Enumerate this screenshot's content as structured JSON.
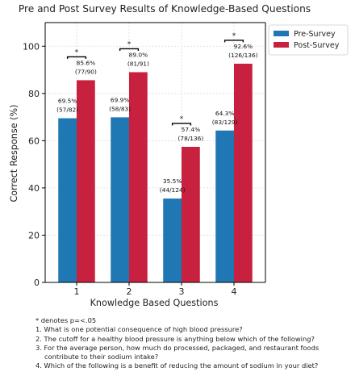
{
  "chart_data": {
    "type": "bar",
    "title": "Pre and Post Survey Results of Knowledge-Based Questions",
    "xlabel": "Knowledge Based Questions",
    "ylabel": "Correct Response (%)",
    "categories": [
      "1",
      "2",
      "3",
      "4"
    ],
    "ylim": [
      0,
      110
    ],
    "yticks": [
      "0",
      "20",
      "40",
      "60",
      "80",
      "100"
    ],
    "grid": true,
    "legend_position": "top-right",
    "series": [
      {
        "name": "Pre-Survey",
        "color": "#1f77b4",
        "values": [
          69.5,
          69.9,
          35.5,
          64.3
        ],
        "labels": [
          [
            "69.5%",
            "(57/82)"
          ],
          [
            "69.9%",
            "(58/83)"
          ],
          [
            "35.5%",
            "(44/124)"
          ],
          [
            "64.3%",
            "(83/129)"
          ]
        ]
      },
      {
        "name": "Post-Survey",
        "color": "#c8203f",
        "values": [
          85.6,
          89.0,
          57.4,
          92.6
        ],
        "labels": [
          [
            "85.6%",
            "(77/90)"
          ],
          [
            "89.0%",
            "(81/91)"
          ],
          [
            "57.4%",
            "(78/136)"
          ],
          [
            "92.6%",
            "(126/136)"
          ]
        ]
      }
    ],
    "significance": [
      "*",
      "*",
      "*",
      "*"
    ]
  },
  "notes": {
    "footnote": "* denotes p=<.05",
    "q1": "1. What is one potential consequence of high blood pressure?",
    "q2": "2. The cutoff for a healthy blood pressure is anything below which of the following?",
    "q3": "3. For the average person, how much do processed, packaged, and restaurant foods contribute to their sodium intake?",
    "q4": "4. Which of the following is a benefit of reducing the amount of sodium in your diet?"
  }
}
